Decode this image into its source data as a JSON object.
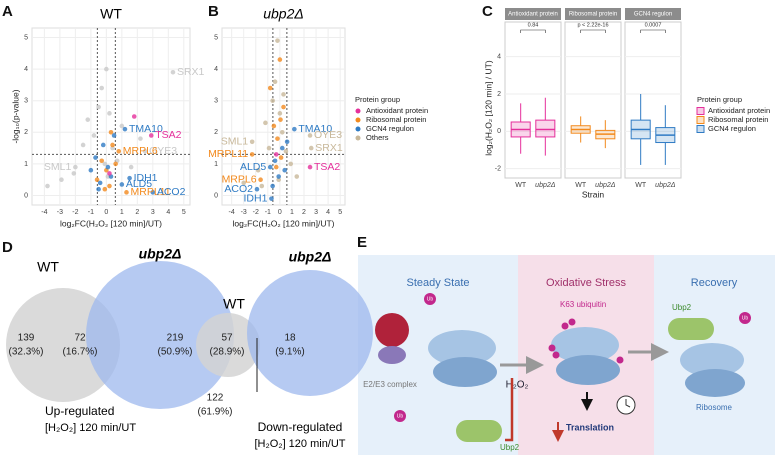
{
  "panel_labels": [
    "A",
    "B",
    "C",
    "D",
    "E"
  ],
  "chart_data": [
    {
      "type": "volcano",
      "title": "WT",
      "xlabel": "log₂FC(H₂O₂ [120 min]/UT)",
      "ylabel": "-log₁₀(p-value)",
      "xlim": [
        -4.8,
        5.4
      ],
      "ylim": [
        -0.3,
        5.3
      ],
      "xticks": [
        -4,
        -3,
        -2,
        -1,
        0,
        1,
        2,
        3,
        4,
        5
      ],
      "yticks": [
        0,
        1,
        2,
        3,
        4,
        5
      ],
      "vlines": [
        -0.58,
        0.58
      ],
      "hline": 1.3,
      "grid": true,
      "series": [
        {
          "color": "#c8c8c8",
          "x": [
            -3.8,
            -2.9,
            -2.1,
            -1.5,
            -1.2,
            -0.8,
            -0.5,
            -0.3,
            0,
            0.2,
            0.4,
            0.7,
            1.0,
            1.6,
            2.2,
            2.5,
            4.3,
            -2.0,
            0.1,
            -0.1
          ],
          "values": [
            0.3,
            0.5,
            0.7,
            1.6,
            2.4,
            1.9,
            2.8,
            3.4,
            4.0,
            2.6,
            1.5,
            1.1,
            2.2,
            0.9,
            1.8,
            1.4,
            3.9,
            0.9,
            0.6,
            1.0
          ],
          "labels": [
            null,
            null,
            null,
            null,
            null,
            null,
            null,
            null,
            null,
            null,
            null,
            null,
            null,
            null,
            null,
            "OYE3",
            "SRX1",
            "SML1",
            null,
            null
          ]
        },
        {
          "color": "#f28a1e",
          "x": [
            -0.6,
            -0.3,
            0,
            0.2,
            0.4,
            0.6,
            0.8,
            1.3,
            -0.1,
            0.3
          ],
          "values": [
            0.5,
            1.1,
            0.8,
            0.3,
            1.6,
            1.0,
            1.4,
            0.1,
            0.2,
            2.0
          ],
          "labels": [
            null,
            null,
            null,
            null,
            null,
            null,
            "MRPL6",
            "MRPL11",
            null,
            null
          ]
        },
        {
          "color": "#2f7bc4",
          "x": [
            -1.0,
            -0.7,
            -0.4,
            -0.2,
            0.1,
            0.5,
            1.2,
            1.5,
            1.0,
            3.0,
            -0.5,
            0.3
          ],
          "values": [
            0.8,
            1.2,
            0.4,
            1.6,
            0.9,
            1.9,
            2.1,
            0.55,
            0.35,
            0.1,
            0.2,
            0.6
          ],
          "labels": [
            null,
            null,
            null,
            null,
            null,
            null,
            "TMA10",
            "IDH1",
            "ALD5",
            "ACO2",
            null,
            null
          ]
        },
        {
          "color": "#e52f9b",
          "x": [
            2.9,
            1.8,
            0.2
          ],
          "values": [
            1.9,
            2.5,
            0.7
          ],
          "labels": [
            "TSA2",
            null,
            null
          ]
        }
      ]
    },
    {
      "type": "volcano",
      "title": "ubp2Δ",
      "xlabel": "log₂FC(H₂O₂ [120 min]/UT)",
      "xlim": [
        -4.8,
        5.4
      ],
      "ylim": [
        -0.3,
        5.3
      ],
      "xticks": [
        -4,
        -3,
        -2,
        -1,
        0,
        1,
        2,
        3,
        4,
        5
      ],
      "yticks": [
        0,
        1,
        2,
        3,
        4,
        5
      ],
      "vlines": [
        -0.58,
        0.58
      ],
      "hline": 1.3,
      "grid": true,
      "legend_title": "Protein group",
      "series": [
        {
          "name": "Antioxidant protein",
          "color": "#e52f9b",
          "x": [
            2.5,
            -0.3
          ],
          "values": [
            0.9,
            1.3
          ],
          "labels": [
            "TSA2",
            null
          ]
        },
        {
          "name": "Ribosomal protein",
          "color": "#f28a1e",
          "x": [
            -2.3,
            -1.6,
            -0.8,
            -0.5,
            -0.2,
            0,
            0.1,
            0.3,
            -0.3,
            0.05
          ],
          "values": [
            1.3,
            0.5,
            3.4,
            2.2,
            1.8,
            4.3,
            1.2,
            2.8,
            0.9,
            2.4
          ],
          "labels": [
            "MRPL11",
            "MRPL6",
            null,
            null,
            null,
            null,
            null,
            null,
            null,
            null
          ]
        },
        {
          "name": "GCN4 regulon",
          "color": "#2f7bc4",
          "x": [
            -0.8,
            -1.9,
            -0.7,
            1.2,
            -0.4,
            -0.1,
            0.2,
            0.4,
            -0.6,
            0.6
          ],
          "values": [
            0.9,
            0.2,
            -0.1,
            2.1,
            1.1,
            0.6,
            1.5,
            0.8,
            0.3,
            1.7
          ],
          "labels": [
            "ALD5",
            "ACO2",
            "IDH1",
            "TMA10",
            null,
            null,
            null,
            null,
            null,
            null
          ]
        },
        {
          "name": "Others",
          "color": "#c8b89a",
          "x": [
            -3.0,
            -2.3,
            -1.8,
            -1.2,
            -0.9,
            -0.6,
            -0.4,
            -0.2,
            0,
            0.2,
            0.5,
            0.9,
            1.4,
            2.5,
            2.6,
            -1.5,
            0.3,
            -0.1
          ],
          "values": [
            0.4,
            1.7,
            0.8,
            2.3,
            1.5,
            3.0,
            3.6,
            4.9,
            2.6,
            2.0,
            1.4,
            1.0,
            0.6,
            1.9,
            1.5,
            0.3,
            3.2,
            0.5
          ],
          "labels": [
            null,
            "SML1",
            null,
            null,
            null,
            null,
            null,
            null,
            null,
            null,
            null,
            null,
            null,
            "OYE3",
            "SRX1",
            null,
            null,
            null
          ]
        }
      ]
    },
    {
      "type": "box",
      "xlabel": "Strain",
      "ylabel": "log₂(H₂O₂ [120 min] / UT)",
      "ylim": [
        -2.5,
        5
      ],
      "yticks": [
        -2,
        0,
        2,
        4
      ],
      "legend_title": "Protein group",
      "categories": [
        "WT",
        "ubp2Δ"
      ],
      "facets": [
        {
          "name": "Antioxidant protein",
          "color": "#e52f9b",
          "pvalue": "0.84",
          "boxes": [
            {
              "whislo": -1.2,
              "q1": -0.3,
              "median": 0.1,
              "q3": 0.5,
              "whishi": 1.5
            },
            {
              "whislo": -1.3,
              "q1": -0.3,
              "median": 0.1,
              "q3": 0.6,
              "whishi": 1.8
            }
          ]
        },
        {
          "name": "Ribosomal protein",
          "color": "#f28a1e",
          "pvalue": "p < 2.22e-16",
          "boxes": [
            {
              "whislo": -0.6,
              "q1": -0.1,
              "median": 0.1,
              "q3": 0.3,
              "whishi": 0.8
            },
            {
              "whislo": -0.9,
              "q1": -0.4,
              "median": -0.15,
              "q3": 0.05,
              "whishi": 0.6
            }
          ]
        },
        {
          "name": "GCN4 regulon",
          "color": "#2f7bc4",
          "pvalue": "0.0007",
          "boxes": [
            {
              "whislo": -1.8,
              "q1": -0.4,
              "median": 0.1,
              "q3": 0.6,
              "whishi": 2.0
            },
            {
              "whislo": -1.8,
              "q1": -0.6,
              "median": -0.2,
              "q3": 0.2,
              "whishi": 1.4
            }
          ]
        }
      ]
    },
    {
      "type": "venn",
      "sets": [
        "WT",
        "ubp2Δ"
      ],
      "values": [
        139,
        72,
        219
      ],
      "value_labels": [
        "(32.3%)",
        "(16.7%)",
        "(50.9%)"
      ],
      "title": "Up-regulated",
      "subtitle": "[H₂O₂] 120 min/UT",
      "colors": [
        "#d4d4d4",
        "#9db8ee"
      ]
    },
    {
      "type": "venn",
      "sets": [
        "WT",
        "ubp2Δ"
      ],
      "values": [
        57,
        18,
        122
      ],
      "value_labels": [
        "(28.9%)",
        "(9.1%)",
        "(61.9%)"
      ],
      "title": "Down-regulated",
      "subtitle": "[H₂O₂] 120 min/UT",
      "colors": [
        "#d4d4d4",
        "#9db8ee"
      ]
    }
  ],
  "diagram": {
    "stages": [
      "Steady State",
      "Oxidative Stress",
      "Recovery"
    ],
    "ub": "Ub",
    "complex": "E2/E3 complex",
    "k63": "K63 ubiquitin",
    "h2o2": "H₂O₂",
    "ubp2": "Ubp2",
    "translation": "Translation",
    "ribosome": "Ribosome"
  }
}
